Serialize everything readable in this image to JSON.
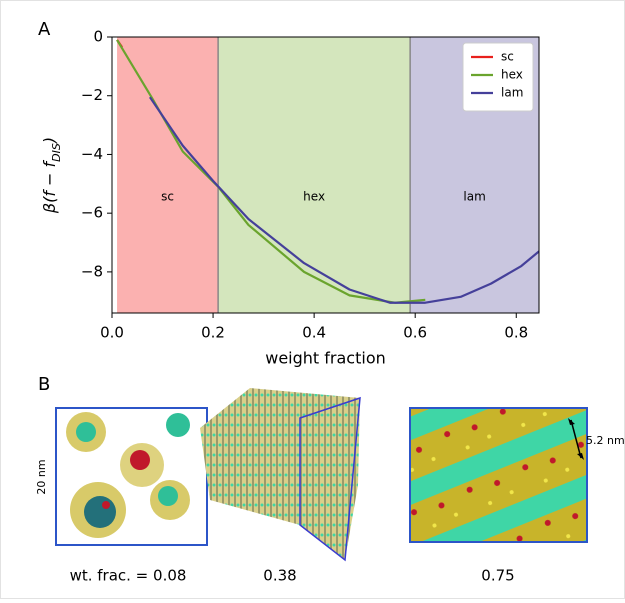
{
  "panel_labels": [
    "A",
    "B"
  ],
  "chart_data": {
    "type": "line",
    "xlabel": "weight fraction",
    "ylabel": {
      "main": "β(f − f",
      "sub": "DIS",
      "close": ")"
    },
    "xlim": [
      0,
      0.845
    ],
    "ylim": [
      -9.4,
      0
    ],
    "xticks": [
      {
        "value": 0,
        "label": "0.0"
      },
      0.2,
      0.4,
      0.6,
      0.8
    ],
    "yticks": [
      0,
      {
        "value": -2,
        "label": "−2"
      },
      {
        "value": -4,
        "label": "−4"
      },
      {
        "value": -6,
        "label": "−6"
      },
      {
        "value": -8,
        "label": "−8"
      }
    ],
    "regions": [
      {
        "name": "sc",
        "start": 0.01,
        "end": 0.21,
        "color": "#fbb1b0"
      },
      {
        "name": "hex",
        "start": 0.21,
        "end": 0.59,
        "color": "#d4e6bd"
      },
      {
        "name": "lam",
        "start": 0.59,
        "end": 0.845,
        "color": "#c9c6df"
      }
    ],
    "legend": "upper right",
    "series": [
      {
        "name": "sc",
        "color": "#e8201c",
        "x": [
          0.01,
          0.02
        ],
        "values": [
          -0.1,
          -0.35
        ]
      },
      {
        "name": "hex",
        "color": "#6aa42d",
        "x": [
          0.01,
          0.08,
          0.14,
          0.21,
          0.27,
          0.38,
          0.47,
          0.56,
          0.62
        ],
        "values": [
          -0.1,
          -2.1,
          -3.9,
          -5.1,
          -6.4,
          -8.0,
          -8.8,
          -9.05,
          -8.95
        ]
      },
      {
        "name": "lam",
        "color": "#45409a",
        "x": [
          0.075,
          0.14,
          0.2,
          0.27,
          0.38,
          0.47,
          0.55,
          0.62,
          0.69,
          0.75,
          0.81,
          0.845
        ],
        "values": [
          -2.05,
          -3.7,
          -4.9,
          -6.2,
          -7.7,
          -8.6,
          -9.05,
          -9.05,
          -8.85,
          -8.4,
          -7.8,
          -7.3
        ]
      }
    ]
  },
  "panel_b": {
    "scale_left": "20 nm",
    "scale_right": "5.2 nm",
    "captions": [
      "wt. frac. = 0.08",
      "0.38",
      "0.75"
    ]
  }
}
